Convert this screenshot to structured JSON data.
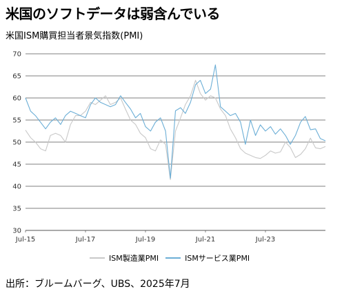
{
  "title": "米国のソフトデータは弱含んでいる",
  "subtitle": "米国ISM購買担当者景気指数(PMI)",
  "source": "出所：ブルームバーグ、UBS、2025年7月",
  "chart_data": {
    "type": "line",
    "ylim": [
      30,
      70
    ],
    "yticks": [
      "30",
      "35",
      "40",
      "45",
      "50",
      "55",
      "60",
      "65",
      "70"
    ],
    "xlim": [
      2015.5,
      2025.5
    ],
    "xticks": [
      {
        "x": 2015.5,
        "label": "Jul-15"
      },
      {
        "x": 2017.5,
        "label": "Jul-17"
      },
      {
        "x": 2019.5,
        "label": "Jul-19"
      },
      {
        "x": 2021.5,
        "label": "Jul-21"
      },
      {
        "x": 2023.5,
        "label": "Jul-23"
      }
    ],
    "grid": true,
    "legend_position": "bottom",
    "series": [
      {
        "name": "ISM製造業PMI",
        "color": "#c8c8c8",
        "points": [
          [
            2015.5,
            52.7
          ],
          [
            2015.67,
            51.0
          ],
          [
            2015.83,
            50.0
          ],
          [
            2016.0,
            48.5
          ],
          [
            2016.17,
            48.0
          ],
          [
            2016.33,
            51.5
          ],
          [
            2016.5,
            52.0
          ],
          [
            2016.67,
            51.5
          ],
          [
            2016.83,
            50.0
          ],
          [
            2017.0,
            54.0
          ],
          [
            2017.17,
            56.0
          ],
          [
            2017.33,
            56.0
          ],
          [
            2017.5,
            57.0
          ],
          [
            2017.67,
            59.0
          ],
          [
            2017.83,
            58.5
          ],
          [
            2018.0,
            59.5
          ],
          [
            2018.17,
            60.5
          ],
          [
            2018.33,
            58.5
          ],
          [
            2018.5,
            59.0
          ],
          [
            2018.67,
            60.0
          ],
          [
            2018.83,
            57.5
          ],
          [
            2019.0,
            55.0
          ],
          [
            2019.17,
            54.0
          ],
          [
            2019.33,
            52.0
          ],
          [
            2019.5,
            51.0
          ],
          [
            2019.67,
            48.5
          ],
          [
            2019.83,
            48.0
          ],
          [
            2020.0,
            50.5
          ],
          [
            2020.17,
            49.5
          ],
          [
            2020.33,
            41.5
          ],
          [
            2020.5,
            52.5
          ],
          [
            2020.67,
            55.5
          ],
          [
            2020.83,
            58.5
          ],
          [
            2021.0,
            60.5
          ],
          [
            2021.17,
            64.0
          ],
          [
            2021.33,
            61.0
          ],
          [
            2021.5,
            59.5
          ],
          [
            2021.67,
            60.5
          ],
          [
            2021.83,
            60.0
          ],
          [
            2022.0,
            57.5
          ],
          [
            2022.17,
            56.0
          ],
          [
            2022.33,
            53.0
          ],
          [
            2022.5,
            51.0
          ],
          [
            2022.67,
            48.5
          ],
          [
            2022.83,
            47.5
          ],
          [
            2023.0,
            47.0
          ],
          [
            2023.17,
            46.5
          ],
          [
            2023.33,
            46.3
          ],
          [
            2023.5,
            47.0
          ],
          [
            2023.67,
            48.0
          ],
          [
            2023.83,
            47.5
          ],
          [
            2024.0,
            47.8
          ],
          [
            2024.17,
            50.0
          ],
          [
            2024.33,
            48.8
          ],
          [
            2024.5,
            46.5
          ],
          [
            2024.67,
            47.2
          ],
          [
            2024.83,
            48.5
          ],
          [
            2025.0,
            50.9
          ],
          [
            2025.17,
            48.7
          ],
          [
            2025.33,
            48.5
          ],
          [
            2025.5,
            49.0
          ]
        ]
      },
      {
        "name": "ISMサービス業PMI",
        "color": "#6baed6",
        "points": [
          [
            2015.5,
            60.0
          ],
          [
            2015.67,
            57.0
          ],
          [
            2015.83,
            56.0
          ],
          [
            2016.0,
            54.5
          ],
          [
            2016.17,
            53.0
          ],
          [
            2016.33,
            54.5
          ],
          [
            2016.5,
            55.5
          ],
          [
            2016.67,
            54.0
          ],
          [
            2016.83,
            56.0
          ],
          [
            2017.0,
            57.0
          ],
          [
            2017.17,
            56.5
          ],
          [
            2017.33,
            56.0
          ],
          [
            2017.5,
            55.5
          ],
          [
            2017.67,
            58.5
          ],
          [
            2017.83,
            60.0
          ],
          [
            2018.0,
            59.0
          ],
          [
            2018.17,
            58.5
          ],
          [
            2018.33,
            58.0
          ],
          [
            2018.5,
            58.5
          ],
          [
            2018.67,
            60.5
          ],
          [
            2018.83,
            59.0
          ],
          [
            2019.0,
            57.5
          ],
          [
            2019.17,
            55.5
          ],
          [
            2019.33,
            56.5
          ],
          [
            2019.5,
            53.5
          ],
          [
            2019.67,
            52.5
          ],
          [
            2019.83,
            54.5
          ],
          [
            2020.0,
            55.5
          ],
          [
            2020.17,
            52.5
          ],
          [
            2020.33,
            41.8
          ],
          [
            2020.5,
            57.1
          ],
          [
            2020.67,
            57.8
          ],
          [
            2020.83,
            56.5
          ],
          [
            2021.0,
            59.0
          ],
          [
            2021.17,
            63.0
          ],
          [
            2021.33,
            64.0
          ],
          [
            2021.5,
            61.0
          ],
          [
            2021.67,
            62.0
          ],
          [
            2021.83,
            67.5
          ],
          [
            2022.0,
            58.0
          ],
          [
            2022.17,
            57.0
          ],
          [
            2022.33,
            56.0
          ],
          [
            2022.5,
            56.5
          ],
          [
            2022.67,
            54.5
          ],
          [
            2022.83,
            49.5
          ],
          [
            2023.0,
            55.0
          ],
          [
            2023.17,
            51.5
          ],
          [
            2023.33,
            53.9
          ],
          [
            2023.5,
            52.5
          ],
          [
            2023.67,
            53.5
          ],
          [
            2023.83,
            51.8
          ],
          [
            2024.0,
            53.0
          ],
          [
            2024.17,
            51.5
          ],
          [
            2024.33,
            49.5
          ],
          [
            2024.5,
            51.5
          ],
          [
            2024.67,
            54.5
          ],
          [
            2024.83,
            55.8
          ],
          [
            2025.0,
            52.8
          ],
          [
            2025.17,
            53.0
          ],
          [
            2025.33,
            50.8
          ],
          [
            2025.5,
            50.3
          ]
        ]
      }
    ]
  }
}
